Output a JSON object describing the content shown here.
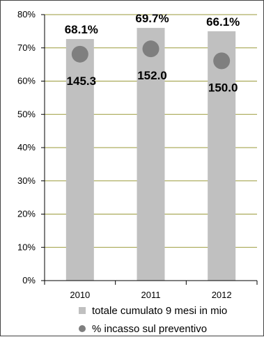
{
  "chart_data": {
    "type": "bar",
    "categories": [
      "2010",
      "2011",
      "2012"
    ],
    "series": [
      {
        "name": "totale cumulato 9 mesi in mio",
        "kind": "bar",
        "color": "#c0c0c0",
        "values": [
          145.3,
          152.0,
          150.0
        ],
        "labels": [
          "145.3",
          "152.0",
          "150.0"
        ]
      },
      {
        "name": "% incasso sul preventivo",
        "kind": "scatter",
        "color": "#7f7f7f",
        "values": [
          68.1,
          69.7,
          66.1
        ],
        "labels": [
          "68.1%",
          "69.7%",
          "66.1%"
        ]
      }
    ],
    "y_axis": {
      "min": 0,
      "max": 80,
      "step": 10,
      "tick_labels": [
        "0%",
        "10%",
        "20%",
        "30%",
        "40%",
        "50%",
        "60%",
        "70%",
        "80%"
      ]
    },
    "bar_axis_max": 160,
    "grid": true,
    "gridline_color": "#9a9a3a",
    "legend_position": "bottom"
  }
}
